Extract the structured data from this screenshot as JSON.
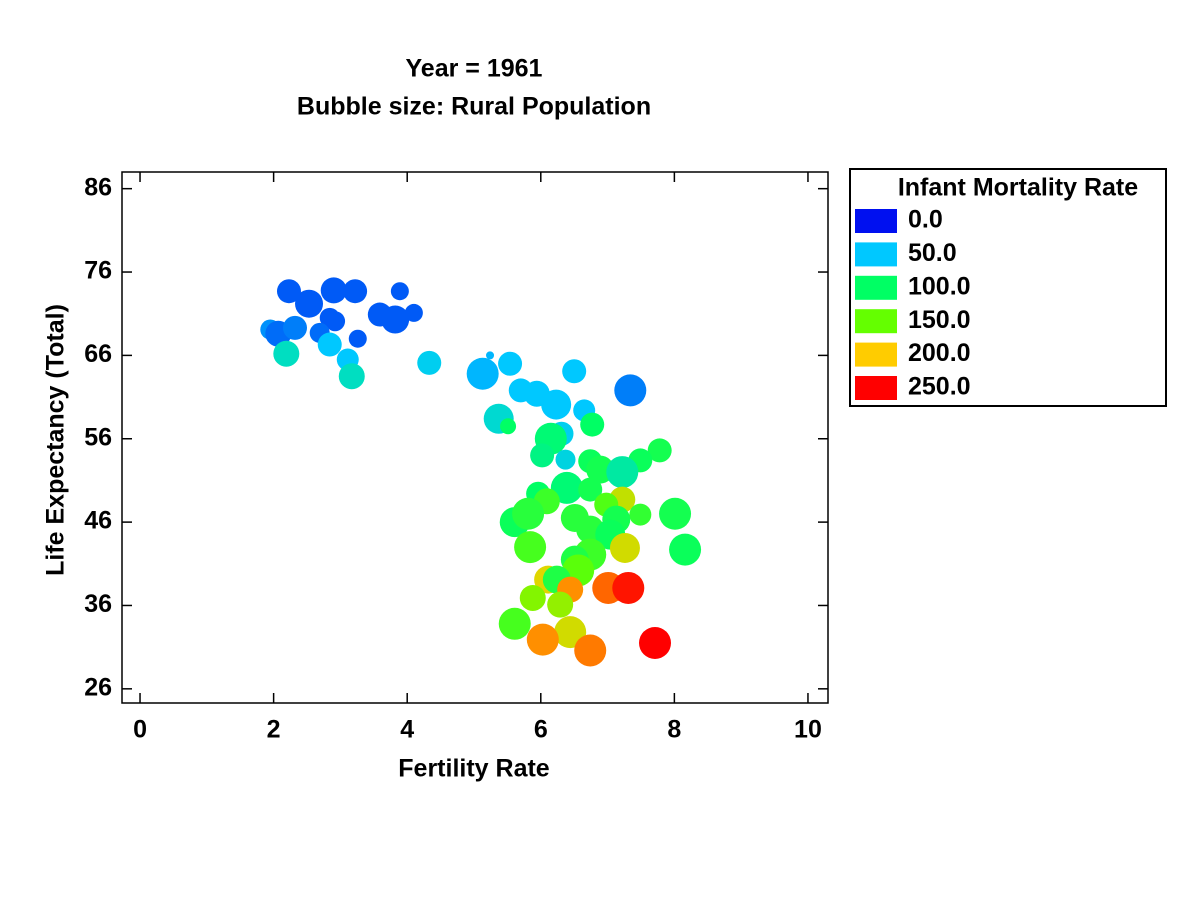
{
  "chart_data": {
    "type": "bubble",
    "title": "Year = 1961",
    "subtitle": "Bubble size: Rural Population",
    "xlabel": "Fertility Rate",
    "ylabel": "Life Expectancy (Total)",
    "xlim": [
      -0.27,
      10.3
    ],
    "ylim": [
      24.3,
      88
    ],
    "xticks": [
      0,
      2,
      4,
      6,
      8,
      10
    ],
    "yticks": [
      26,
      36,
      46,
      56,
      66,
      76,
      86
    ],
    "legend_title": "Infant Mortality Rate",
    "legend_position": "right",
    "color_scale": [
      {
        "value": 0,
        "label": "0.0",
        "color": "#0010f0"
      },
      {
        "value": 50,
        "label": "50.0",
        "color": "#00c8ff"
      },
      {
        "value": 100,
        "label": "100.0",
        "color": "#00ff64"
      },
      {
        "value": 150,
        "label": "150.0",
        "color": "#64ff00"
      },
      {
        "value": 200,
        "label": "200.0",
        "color": "#ffcc00"
      },
      {
        "value": 250,
        "label": "250.0",
        "color": "#ff0000"
      }
    ],
    "x": [
      2.23,
      2.9,
      3.22,
      2.53,
      3.89,
      4.1,
      3.59,
      3.82,
      2.84,
      2.92,
      1.95,
      2.07,
      2.32,
      2.69,
      3.26,
      2.84,
      2.19,
      3.11,
      3.17,
      4.33,
      5.24,
      5.54,
      5.13,
      6.5,
      7.34,
      5.7,
      5.94,
      6.23,
      6.65,
      5.37,
      5.51,
      6.77,
      6.31,
      6.15,
      6.02,
      6.37,
      7.78,
      7.49,
      6.74,
      6.89,
      7.22,
      5.96,
      6.39,
      6.74,
      7.22,
      6.09,
      6.98,
      7.49,
      8.01,
      5.61,
      5.81,
      6.51,
      7.13,
      6.74,
      7.04,
      5.84,
      7.26,
      8.16,
      6.74,
      6.51,
      6.56,
      6.11,
      6.24,
      7.19,
      7.01,
      7.31,
      6.44,
      5.88,
      6.29,
      5.61,
      6.44,
      6.03,
      6.74,
      7.71
    ],
    "values": [
      73.7,
      73.8,
      73.7,
      72.2,
      73.7,
      71.1,
      70.9,
      70.3,
      70.5,
      70.1,
      69.1,
      68.6,
      69.3,
      68.7,
      68.0,
      67.3,
      66.2,
      65.5,
      63.5,
      65.1,
      66.0,
      65.0,
      63.8,
      64.1,
      61.8,
      61.8,
      61.4,
      60.1,
      59.4,
      58.4,
      57.5,
      57.7,
      56.6,
      56.0,
      54.0,
      53.5,
      54.6,
      53.4,
      53.3,
      52.3,
      52.0,
      49.4,
      50.1,
      49.9,
      48.7,
      48.5,
      48.1,
      46.9,
      47.0,
      46.0,
      47.0,
      46.5,
      46.3,
      45.1,
      44.5,
      43.0,
      42.9,
      42.7,
      42.1,
      41.5,
      40.2,
      39.1,
      39.1,
      38.1,
      38.1,
      38.1,
      37.9,
      36.9,
      36.1,
      33.8,
      32.8,
      31.9,
      30.6,
      31.5
    ],
    "sizes": [
      12,
      13,
      12,
      14,
      9,
      9,
      12,
      14,
      10,
      10,
      10,
      13,
      12,
      10,
      9,
      12,
      13,
      11,
      13,
      12,
      4,
      12,
      16,
      12,
      16,
      12,
      13,
      15,
      11,
      15,
      8,
      12,
      12,
      16,
      12,
      10,
      12,
      12,
      12,
      14,
      16,
      12,
      16,
      12,
      13,
      13,
      12,
      11,
      16,
      15,
      16,
      14,
      14,
      14,
      15,
      16,
      15,
      16,
      16,
      14,
      16,
      14,
      14,
      13,
      16,
      16,
      13,
      13,
      13,
      16,
      16,
      16,
      16,
      16
    ],
    "color_values": [
      20,
      20,
      20,
      20,
      20,
      20,
      20,
      20,
      20,
      20,
      35,
      25,
      30,
      25,
      20,
      50,
      70,
      50,
      70,
      55,
      45,
      50,
      45,
      50,
      30,
      50,
      50,
      50,
      50,
      65,
      100,
      100,
      55,
      95,
      90,
      60,
      110,
      105,
      105,
      110,
      80,
      100,
      95,
      110,
      180,
      130,
      140,
      125,
      110,
      105,
      120,
      120,
      110,
      120,
      105,
      135,
      185,
      105,
      130,
      115,
      145,
      190,
      115,
      220,
      225,
      245,
      215,
      160,
      165,
      135,
      185,
      215,
      220,
      250
    ]
  }
}
